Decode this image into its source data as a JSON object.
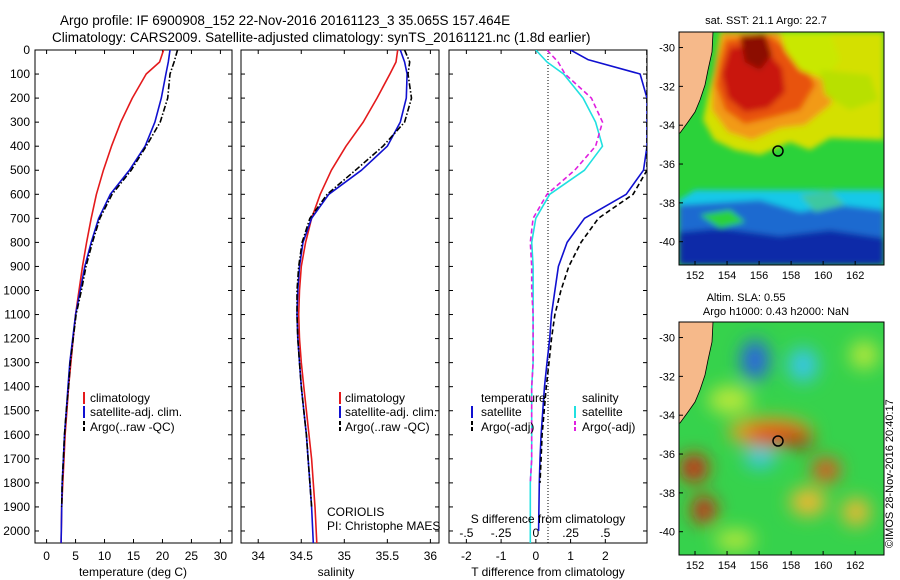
{
  "header": {
    "line1": "Argo profile: IF 6900908_152 22-Nov-2016 20161123_3 35.065S 157.464E",
    "line2": "Climatology: CARS2009. Satellite-adjusted climatology: synTS_20161121.nc (1.8d earlier)"
  },
  "colors": {
    "climatology": "#e41a1c",
    "satellite": "#1010d0",
    "argo": "#000000",
    "sat_salinity": "#20e0e0",
    "argo_salinity": "#e020e0",
    "land": "#f6b98a"
  },
  "chart_data": [
    {
      "type": "line",
      "title": "",
      "xlabel": "temperature (deg C)",
      "ylabel": "",
      "xlim": [
        -2,
        32
      ],
      "ylim": [
        2050,
        0
      ],
      "xticks": [
        0,
        5,
        10,
        15,
        20,
        25,
        30
      ],
      "yticks": [
        0,
        100,
        200,
        300,
        400,
        500,
        600,
        700,
        800,
        900,
        1000,
        1100,
        1200,
        1300,
        1400,
        1500,
        1600,
        1700,
        1800,
        1900,
        2000
      ],
      "legend": {
        "placement": "bottom-right",
        "entries": [
          "climatology",
          "satellite-adj. clim.",
          "Argo(..raw -QC)"
        ]
      },
      "series": [
        {
          "name": "climatology",
          "style": "solid",
          "color": "#e41a1c",
          "x": [
            20.2,
            19.5,
            17.2,
            14.8,
            12.8,
            11.2,
            9.8,
            8.6,
            7.7,
            6.9,
            6.2,
            5.6,
            5.0,
            4.6,
            4.2,
            3.8,
            3.5,
            3.2,
            3.0,
            2.8,
            2.6,
            2.5
          ],
          "y": [
            0,
            50,
            100,
            200,
            300,
            400,
            500,
            600,
            700,
            800,
            900,
            1000,
            1100,
            1200,
            1300,
            1400,
            1500,
            1600,
            1700,
            1800,
            1900,
            2050
          ]
        },
        {
          "name": "satellite-adj. clim.",
          "style": "solid",
          "color": "#1010d0",
          "x": [
            21.3,
            21.0,
            20.6,
            19.8,
            18.7,
            17.0,
            14.3,
            11.0,
            9.0,
            7.7,
            6.6,
            5.8,
            5.0,
            4.5,
            4.0,
            3.7,
            3.4,
            3.1,
            2.9,
            2.7,
            2.6,
            2.5
          ],
          "y": [
            0,
            50,
            100,
            200,
            300,
            400,
            500,
            600,
            700,
            800,
            900,
            1000,
            1100,
            1200,
            1300,
            1400,
            1500,
            1600,
            1700,
            1800,
            1900,
            2050
          ]
        },
        {
          "name": "Argo(..raw -QC)",
          "style": "dashdot",
          "color": "#000000",
          "x": [
            22.6,
            22.0,
            21.3,
            20.9,
            19.6,
            17.2,
            14.6,
            11.3,
            9.2,
            7.9,
            6.8,
            6.0,
            5.1,
            4.6,
            4.1,
            3.8,
            3.4,
            3.1,
            2.9,
            2.7,
            2.6
          ],
          "y": [
            0,
            50,
            100,
            200,
            300,
            400,
            500,
            600,
            700,
            800,
            900,
            1000,
            1100,
            1200,
            1300,
            1400,
            1500,
            1600,
            1700,
            1800,
            1900
          ]
        }
      ]
    },
    {
      "type": "line",
      "title": "",
      "xlabel": "salinity",
      "ylabel": "",
      "xlim": [
        33.8,
        36.1
      ],
      "ylim": [
        2050,
        0
      ],
      "xticks": [
        34,
        34.5,
        35,
        35.5,
        36
      ],
      "legend": {
        "placement": "bottom-right",
        "entries": [
          "climatology",
          "satellite-adj. clim.",
          "Argo(..raw -QC)"
        ]
      },
      "annotations": [
        "CORIOLIS",
        "PI: Christophe MAES"
      ],
      "series": [
        {
          "name": "climatology",
          "style": "solid",
          "color": "#e41a1c",
          "x": [
            35.62,
            35.6,
            35.53,
            35.38,
            35.22,
            35.02,
            34.85,
            34.72,
            34.62,
            34.55,
            34.5,
            34.48,
            34.47,
            34.48,
            34.5,
            34.53,
            34.56,
            34.59,
            34.62,
            34.64,
            34.66,
            34.68
          ],
          "y": [
            0,
            50,
            100,
            200,
            300,
            400,
            500,
            600,
            700,
            800,
            900,
            1000,
            1100,
            1200,
            1300,
            1400,
            1500,
            1600,
            1700,
            1800,
            1900,
            2050
          ]
        },
        {
          "name": "satellite-adj. clim.",
          "style": "solid",
          "color": "#1010d0",
          "x": [
            35.65,
            35.7,
            35.73,
            35.72,
            35.65,
            35.5,
            35.2,
            34.82,
            34.62,
            34.52,
            34.48,
            34.46,
            34.45,
            34.46,
            34.48,
            34.5,
            34.53,
            34.56,
            34.58,
            34.6,
            34.62,
            34.64
          ],
          "y": [
            0,
            50,
            100,
            200,
            300,
            400,
            500,
            600,
            700,
            800,
            900,
            1000,
            1100,
            1200,
            1300,
            1400,
            1500,
            1600,
            1700,
            1800,
            1900,
            2050
          ]
        },
        {
          "name": "Argo(..raw -QC)",
          "style": "dashdot",
          "color": "#000000",
          "x": [
            35.7,
            35.76,
            35.74,
            35.78,
            35.7,
            35.45,
            35.13,
            34.8,
            34.6,
            34.51,
            34.47,
            34.45,
            34.45,
            34.46,
            34.48,
            34.5,
            34.53,
            34.56,
            34.58,
            34.6,
            34.62
          ],
          "y": [
            0,
            50,
            100,
            200,
            300,
            400,
            500,
            600,
            700,
            800,
            900,
            1000,
            1100,
            1200,
            1300,
            1400,
            1500,
            1600,
            1700,
            1800,
            1900
          ]
        }
      ]
    },
    {
      "type": "line",
      "title": "",
      "xlabel": "T difference from climatology",
      "xlabel_top": "S difference from climatology",
      "xlim": [
        -2.5,
        3.2
      ],
      "ylim": [
        2050,
        0
      ],
      "xticks": [
        -2,
        -1,
        0,
        1,
        2
      ],
      "xticks_top": [
        -0.5,
        -0.25,
        0,
        0.25,
        0.5
      ],
      "legend": {
        "placement": "bottom",
        "headers": [
          "temperature",
          "salinity"
        ],
        "entries": [
          "satellite",
          "Argo(-adj)",
          "satellite",
          "Argo(-adj)"
        ]
      },
      "series": [
        {
          "name": "temperature satellite",
          "style": "solid",
          "color": "#1010d0",
          "x": [
            1.0,
            1.5,
            3.0,
            3.2,
            3.2,
            3.2,
            3.1,
            2.6,
            1.4,
            0.9,
            0.65,
            0.55,
            0.45,
            0.4,
            0.32,
            0.25,
            0.2,
            0.15,
            0.12,
            0.1,
            0.08
          ],
          "y": [
            0,
            40,
            100,
            200,
            300,
            400,
            500,
            600,
            700,
            800,
            900,
            1000,
            1100,
            1200,
            1300,
            1400,
            1500,
            1600,
            1700,
            1800,
            2000
          ]
        },
        {
          "name": "temperature Argo(-adj)",
          "style": "dashed",
          "color": "#000000",
          "x": [
            3.2,
            3.2,
            3.2,
            3.2,
            3.2,
            3.2,
            3.2,
            2.8,
            1.8,
            1.3,
            0.95,
            0.72,
            0.55,
            0.45,
            0.38,
            0.3,
            0.24,
            0.18,
            0.15,
            0.12
          ],
          "y": [
            0,
            50,
            100,
            200,
            300,
            400,
            500,
            600,
            700,
            800,
            900,
            1000,
            1100,
            1200,
            1300,
            1400,
            1500,
            1600,
            1700,
            1800
          ]
        },
        {
          "name": "salinity satellite",
          "style": "solid",
          "color": "#20e0e0",
          "x": [
            0.0,
            0.08,
            0.2,
            0.34,
            0.43,
            0.48,
            0.35,
            0.1,
            0.0,
            -0.03,
            -0.02,
            -0.02,
            -0.02,
            -0.02,
            -0.02,
            -0.03,
            -0.03,
            -0.03,
            -0.03,
            -0.04,
            -0.04,
            -0.04
          ],
          "y": [
            0,
            50,
            100,
            200,
            300,
            400,
            500,
            600,
            700,
            800,
            900,
            1000,
            1100,
            1200,
            1300,
            1400,
            1500,
            1600,
            1700,
            1800,
            1900,
            2050
          ]
        },
        {
          "name": "salinity Argo(-adj)",
          "style": "dashed",
          "color": "#e020e0",
          "x": [
            0.08,
            0.16,
            0.21,
            0.4,
            0.48,
            0.43,
            0.28,
            0.08,
            -0.02,
            -0.04,
            -0.03,
            -0.03,
            -0.02,
            -0.02,
            -0.02,
            -0.03,
            -0.03,
            -0.03,
            -0.03,
            -0.04
          ],
          "y": [
            0,
            50,
            100,
            200,
            300,
            400,
            500,
            600,
            700,
            800,
            900,
            1000,
            1100,
            1200,
            1300,
            1400,
            1500,
            1600,
            1700,
            1800
          ]
        }
      ]
    },
    {
      "type": "heatmap",
      "title": "sat. SST: 21.1  Argo: 22.7",
      "xticks": [
        152,
        154,
        156,
        158,
        160,
        162
      ],
      "yticks": [
        -30,
        -32,
        -34,
        -36,
        -38,
        -40
      ],
      "marker": {
        "lon": 157.464,
        "lat": -35.065
      }
    },
    {
      "type": "heatmap",
      "title": "Altim. SLA: 0.55",
      "subtitle": "Argo h1000: 0.43 h2000: NaN",
      "xticks": [
        152,
        154,
        156,
        158,
        160,
        162
      ],
      "yticks": [
        -30,
        -32,
        -34,
        -36,
        -38,
        -40
      ],
      "marker": {
        "lon": 157.464,
        "lat": -35.065
      }
    }
  ],
  "credit": "©IMOS 28-Nov-2016 20:40:17"
}
